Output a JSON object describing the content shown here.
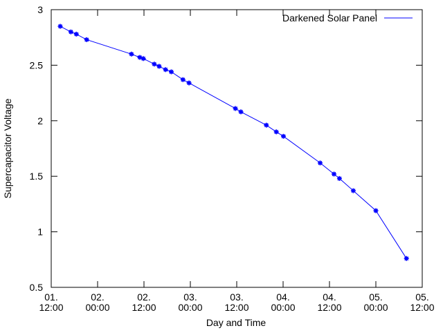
{
  "chart_data": {
    "type": "line",
    "title": "",
    "xlabel": "Day and Time",
    "ylabel": "Supercapacitor Voltage",
    "ylim": [
      0.5,
      3
    ],
    "xlim": [
      "01. 12:00",
      "05. 12:00"
    ],
    "grid": false,
    "legend_position": "top-right",
    "y_ticks": [
      "0.5",
      "1",
      "1.5",
      "2",
      "2.5",
      "3"
    ],
    "x_ticks": [
      {
        "line1": "01.",
        "line2": "12:00"
      },
      {
        "line1": "02.",
        "line2": "00:00"
      },
      {
        "line1": "02.",
        "line2": "12:00"
      },
      {
        "line1": "03.",
        "line2": "00:00"
      },
      {
        "line1": "03.",
        "line2": "12:00"
      },
      {
        "line1": "04.",
        "line2": "00:00"
      },
      {
        "line1": "04.",
        "line2": "12:00"
      },
      {
        "line1": "05.",
        "line2": "00:00"
      },
      {
        "line1": "05.",
        "line2": "12:00"
      }
    ],
    "series": [
      {
        "name": "Darkened Solar Panel",
        "color": "#0000ff",
        "x": [
          "01. 14:20",
          "01. 17:05",
          "01. 18:30",
          "01. 21:10",
          "02. 08:45",
          "02. 10:55",
          "02. 11:50",
          "02. 14:40",
          "02. 15:55",
          "02. 17:35",
          "02. 19:05",
          "02. 22:05",
          "02. 23:40",
          "03. 11:40",
          "03. 13:05",
          "03. 19:40",
          "03. 22:15",
          "04. 00:05",
          "04. 09:35",
          "04. 13:10",
          "04. 14:35",
          "04. 18:10",
          "05. 00:00",
          "05. 07:55"
        ],
        "y": [
          2.85,
          2.8,
          2.78,
          2.73,
          2.6,
          2.57,
          2.56,
          2.51,
          2.49,
          2.46,
          2.44,
          2.37,
          2.34,
          2.11,
          2.08,
          1.96,
          1.9,
          1.86,
          1.62,
          1.52,
          1.48,
          1.37,
          1.19,
          0.76
        ]
      }
    ]
  }
}
